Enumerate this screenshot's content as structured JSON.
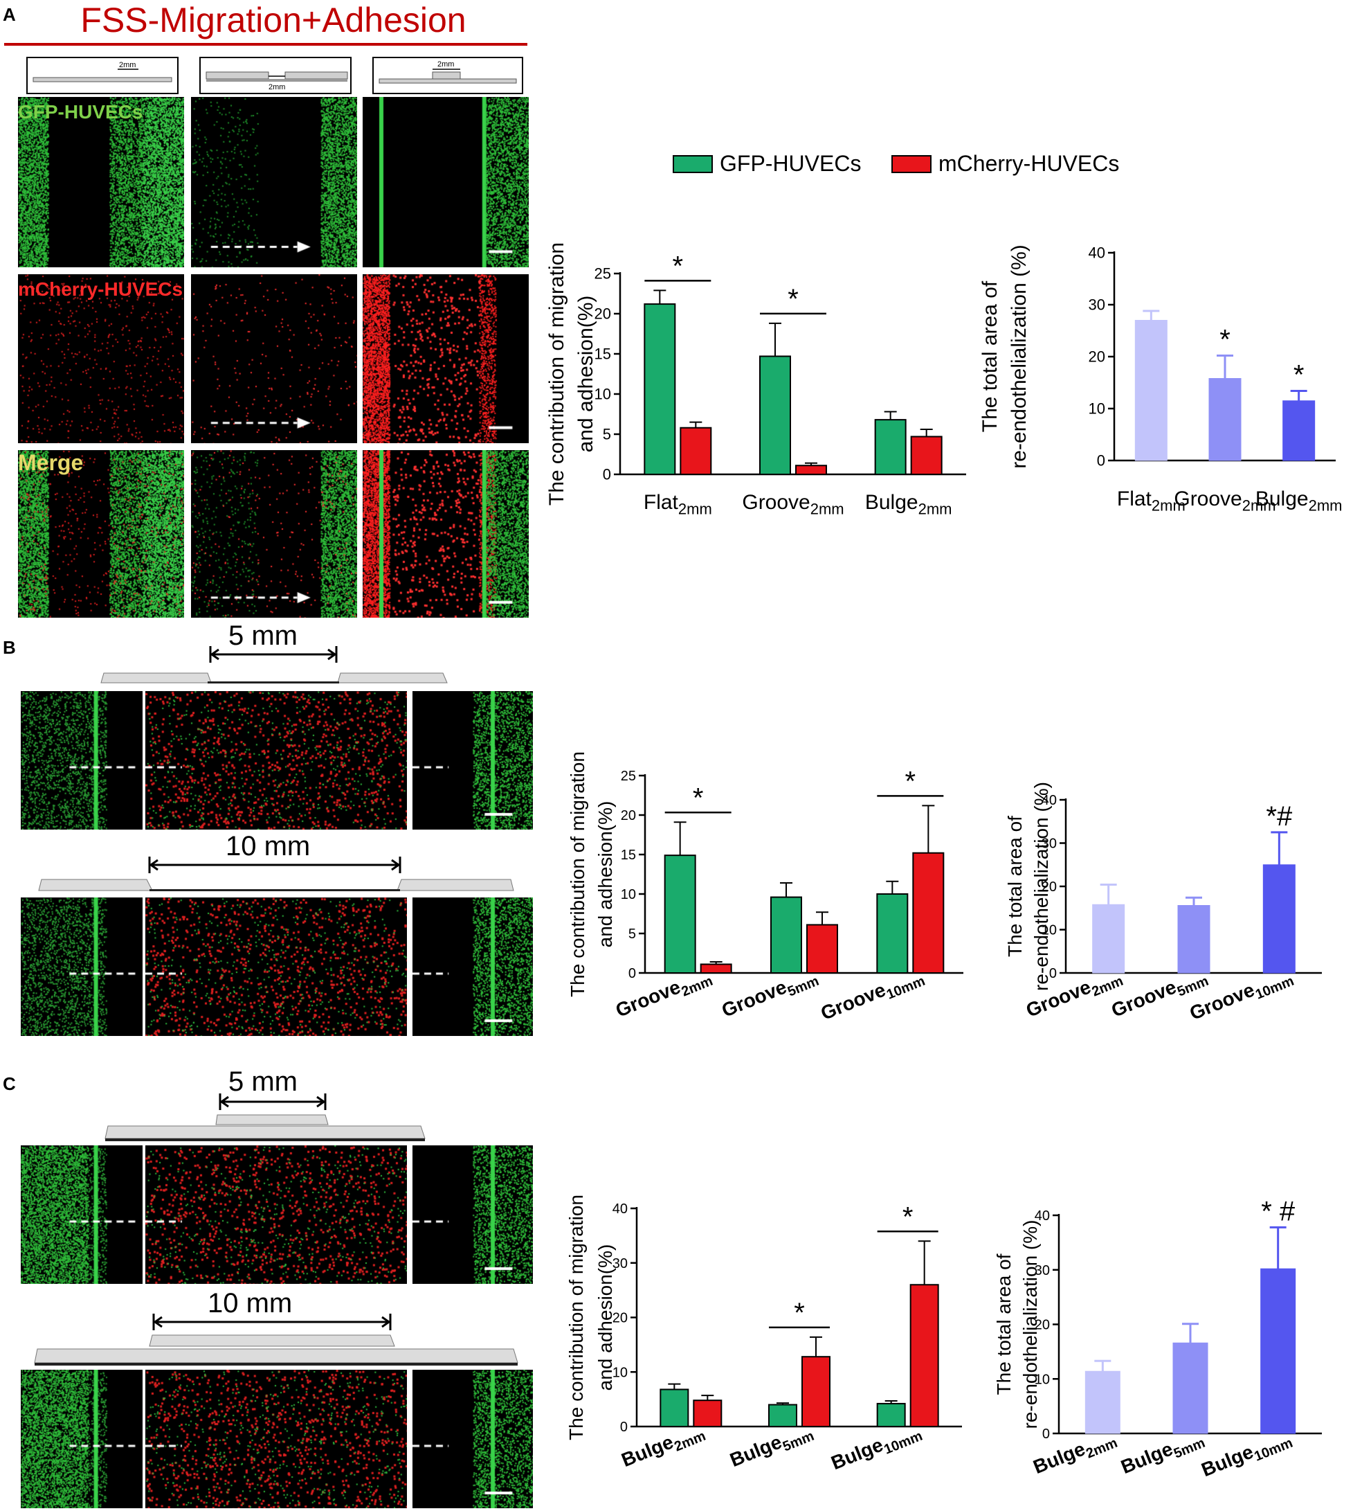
{
  "figure": {
    "title": "FSS-Migration+Adhesion",
    "panel_letters": [
      "A",
      "B",
      "C"
    ],
    "colors": {
      "gfp": "#1aab6c",
      "mcherry": "#e8151b",
      "area_light": "#c2c4fb",
      "area_mid": "#8e90f6",
      "area_dark": "#5456ef",
      "title_red": "#c00000"
    }
  },
  "panel_a": {
    "row_labels": [
      "GFP-HUVECs",
      "mCherry-HUVECs",
      "Merge"
    ],
    "inset_labels": [
      "2mm",
      "2mm",
      "2mm"
    ],
    "legend": [
      "GFP-HUVECs",
      "mCherry-HUVECs"
    ]
  },
  "panel_b": {
    "dims": [
      "5 mm",
      "10 mm"
    ]
  },
  "panel_c": {
    "dims": [
      "5 mm",
      "10 mm"
    ]
  },
  "chart_data": [
    {
      "id": "a_contrib",
      "type": "bar",
      "ylabel": [
        "The contribution of migration",
        "and adhesion(%)"
      ],
      "ylim": [
        0,
        25
      ],
      "yticks": [
        0,
        5,
        10,
        15,
        20,
        25
      ],
      "categories": [
        [
          "Flat",
          "2mm"
        ],
        [
          "Groove",
          "2mm"
        ],
        [
          "Bulge",
          "2mm"
        ]
      ],
      "series": [
        {
          "name": "GFP-HUVECs",
          "values": [
            21.2,
            14.7,
            6.8
          ],
          "errors": [
            1.7,
            4.1,
            1.0
          ]
        },
        {
          "name": "mCherry-HUVECs",
          "values": [
            5.8,
            1.1,
            4.7
          ],
          "errors": [
            0.7,
            0.3,
            0.9
          ]
        }
      ],
      "annotations": [
        {
          "category": 0,
          "text": "*"
        },
        {
          "category": 1,
          "text": "*"
        }
      ]
    },
    {
      "id": "a_area",
      "type": "bar",
      "ylabel": [
        "The total area of",
        "re-endothelialization (%)"
      ],
      "ylim": [
        0,
        40
      ],
      "yticks": [
        0,
        10,
        20,
        30,
        40
      ],
      "categories": [
        [
          "Flat",
          "2mm"
        ],
        [
          "Groove",
          "2mm"
        ],
        [
          "Bulge",
          "2mm"
        ]
      ],
      "values": [
        27.0,
        15.8,
        11.5
      ],
      "errors": [
        1.8,
        4.4,
        1.9
      ],
      "annotations": [
        "",
        "*",
        "*"
      ]
    },
    {
      "id": "b_contrib",
      "type": "bar",
      "ylabel": [
        "The contribution of migration",
        "and adhesion(%)"
      ],
      "ylim": [
        0,
        25
      ],
      "yticks": [
        0,
        5,
        10,
        15,
        20,
        25
      ],
      "categories": [
        [
          "Groove",
          "2mm"
        ],
        [
          "Groove",
          "5mm"
        ],
        [
          "Groove",
          "10mm"
        ]
      ],
      "series": [
        {
          "name": "GFP-HUVECs",
          "values": [
            14.9,
            9.6,
            10.0
          ],
          "errors": [
            4.2,
            1.8,
            1.6
          ]
        },
        {
          "name": "mCherry-HUVECs",
          "values": [
            1.1,
            6.1,
            15.2
          ],
          "errors": [
            0.3,
            1.6,
            6.0
          ]
        }
      ],
      "annotations": [
        {
          "category": 0,
          "text": "*"
        },
        {
          "category": 2,
          "text": "*"
        }
      ]
    },
    {
      "id": "b_area",
      "type": "bar",
      "ylabel": [
        "The total area of",
        "re-endothelialization (%)"
      ],
      "ylim": [
        0,
        40
      ],
      "yticks": [
        0,
        10,
        20,
        30,
        40
      ],
      "categories": [
        [
          "Groove",
          "2mm"
        ],
        [
          "Groove",
          "5mm"
        ],
        [
          "Groove",
          "10mm"
        ]
      ],
      "values": [
        15.8,
        15.6,
        25.0
      ],
      "errors": [
        4.6,
        1.8,
        7.5
      ],
      "annotations": [
        "",
        "",
        "*#"
      ]
    },
    {
      "id": "c_contrib",
      "type": "bar",
      "ylabel": [
        "The contribution of migration",
        "and adhesion(%)"
      ],
      "ylim": [
        0,
        40
      ],
      "yticks": [
        0,
        10,
        20,
        30,
        40
      ],
      "categories": [
        [
          "Bulge",
          "2mm"
        ],
        [
          "Bulge",
          "5mm"
        ],
        [
          "Bulge",
          "10mm"
        ]
      ],
      "series": [
        {
          "name": "GFP-HUVECs",
          "values": [
            6.8,
            4.0,
            4.2
          ],
          "errors": [
            1.0,
            0.3,
            0.5
          ]
        },
        {
          "name": "mCherry-HUVECs",
          "values": [
            4.8,
            12.8,
            26.0
          ],
          "errors": [
            0.9,
            3.6,
            8.0
          ]
        }
      ],
      "annotations": [
        {
          "category": 1,
          "text": "*"
        },
        {
          "category": 2,
          "text": "*"
        }
      ]
    },
    {
      "id": "c_area",
      "type": "bar",
      "ylabel": [
        "The total area of",
        "re-endothelialization (%)"
      ],
      "ylim": [
        0,
        40
      ],
      "yticks": [
        0,
        10,
        20,
        30,
        40
      ],
      "categories": [
        [
          "Bulge",
          "2mm"
        ],
        [
          "Bulge",
          "5mm"
        ],
        [
          "Bulge",
          "10mm"
        ]
      ],
      "values": [
        11.4,
        16.6,
        30.2
      ],
      "errors": [
        1.9,
        3.5,
        7.6
      ],
      "annotations": [
        "",
        "",
        "* #"
      ]
    }
  ]
}
